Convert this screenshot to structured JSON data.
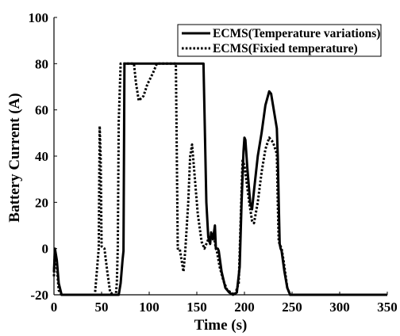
{
  "chart_data": {
    "type": "line",
    "xlabel": "Time (s)",
    "ylabel": "Battery Current (A)",
    "xlim": [
      0,
      350
    ],
    "ylim": [
      -20,
      100
    ],
    "x_ticks": [
      "0",
      "50",
      "100",
      "150",
      "200",
      "250",
      "300",
      "350"
    ],
    "y_ticks": [
      "-20",
      "0",
      "20",
      "40",
      "60",
      "80",
      "100"
    ],
    "grid": false,
    "legend_position": "top-right",
    "series": [
      {
        "name": "ECMS(Temperature variations)",
        "style": "solid",
        "color": "#000000",
        "points": [
          [
            0,
            -10
          ],
          [
            1,
            0
          ],
          [
            3,
            -5
          ],
          [
            5,
            -15
          ],
          [
            8,
            -20
          ],
          [
            68,
            -20
          ],
          [
            70,
            -15
          ],
          [
            72,
            -5
          ],
          [
            73,
            -1
          ],
          [
            74,
            80
          ],
          [
            157,
            80
          ],
          [
            158,
            60
          ],
          [
            160,
            20
          ],
          [
            162,
            5
          ],
          [
            164,
            2
          ],
          [
            165,
            7
          ],
          [
            166,
            5
          ],
          [
            167,
            4
          ],
          [
            168,
            7
          ],
          [
            169,
            10
          ],
          [
            170,
            0
          ],
          [
            172,
            0
          ],
          [
            173,
            -1
          ],
          [
            176,
            -10
          ],
          [
            180,
            -17
          ],
          [
            184,
            -19
          ],
          [
            188,
            -20
          ],
          [
            192,
            -19
          ],
          [
            195,
            -8
          ],
          [
            197,
            20
          ],
          [
            199,
            42
          ],
          [
            200,
            48
          ],
          [
            201,
            47
          ],
          [
            203,
            35
          ],
          [
            206,
            20
          ],
          [
            208,
            17
          ],
          [
            210,
            25
          ],
          [
            214,
            40
          ],
          [
            218,
            50
          ],
          [
            222,
            62
          ],
          [
            226,
            68
          ],
          [
            228,
            67
          ],
          [
            232,
            57
          ],
          [
            234,
            52
          ],
          [
            235,
            40
          ],
          [
            236,
            20
          ],
          [
            237,
            2
          ],
          [
            238,
            0
          ],
          [
            239,
            -1
          ],
          [
            242,
            -10
          ],
          [
            245,
            -17
          ],
          [
            248,
            -20
          ],
          [
            350,
            -20
          ]
        ]
      },
      {
        "name": "ECMS(Fixied temperature)",
        "style": "dotted",
        "color": "#000000",
        "points": [
          [
            0,
            -12
          ],
          [
            1,
            -1
          ],
          [
            3,
            -8
          ],
          [
            5,
            -18
          ],
          [
            8,
            -20
          ],
          [
            43,
            -20
          ],
          [
            47,
            0
          ],
          [
            48,
            53
          ],
          [
            49,
            40
          ],
          [
            50,
            1
          ],
          [
            53,
            0
          ],
          [
            56,
            -10
          ],
          [
            59,
            -19
          ],
          [
            63,
            -20
          ],
          [
            65,
            -20
          ],
          [
            66,
            -15
          ],
          [
            67,
            0
          ],
          [
            68,
            55
          ],
          [
            70,
            80
          ],
          [
            84,
            80
          ],
          [
            86,
            72
          ],
          [
            89,
            64
          ],
          [
            94,
            66
          ],
          [
            98,
            71
          ],
          [
            104,
            76
          ],
          [
            108,
            80
          ],
          [
            128,
            80
          ],
          [
            129,
            40
          ],
          [
            130,
            0
          ],
          [
            132,
            0
          ],
          [
            134,
            -5
          ],
          [
            136,
            -10
          ],
          [
            138,
            0
          ],
          [
            141,
            20
          ],
          [
            143,
            40
          ],
          [
            145,
            45
          ],
          [
            147,
            35
          ],
          [
            151,
            15
          ],
          [
            155,
            3
          ],
          [
            158,
            0
          ],
          [
            163,
            5
          ],
          [
            167,
            7
          ],
          [
            168,
            5
          ],
          [
            170,
            0
          ],
          [
            171,
            -1
          ],
          [
            174,
            -8
          ],
          [
            178,
            -14
          ],
          [
            182,
            -18
          ],
          [
            186,
            -19
          ],
          [
            190,
            -20
          ],
          [
            194,
            -15
          ],
          [
            197,
            25
          ],
          [
            198,
            38
          ],
          [
            200,
            36
          ],
          [
            205,
            20
          ],
          [
            208,
            12
          ],
          [
            210,
            11
          ],
          [
            214,
            20
          ],
          [
            218,
            33
          ],
          [
            222,
            43
          ],
          [
            226,
            48
          ],
          [
            230,
            46
          ],
          [
            234,
            41
          ],
          [
            235,
            20
          ],
          [
            236,
            3
          ],
          [
            239,
            0
          ],
          [
            241,
            -5
          ],
          [
            245,
            -17
          ],
          [
            248,
            -20
          ],
          [
            350,
            -20
          ]
        ]
      }
    ]
  }
}
